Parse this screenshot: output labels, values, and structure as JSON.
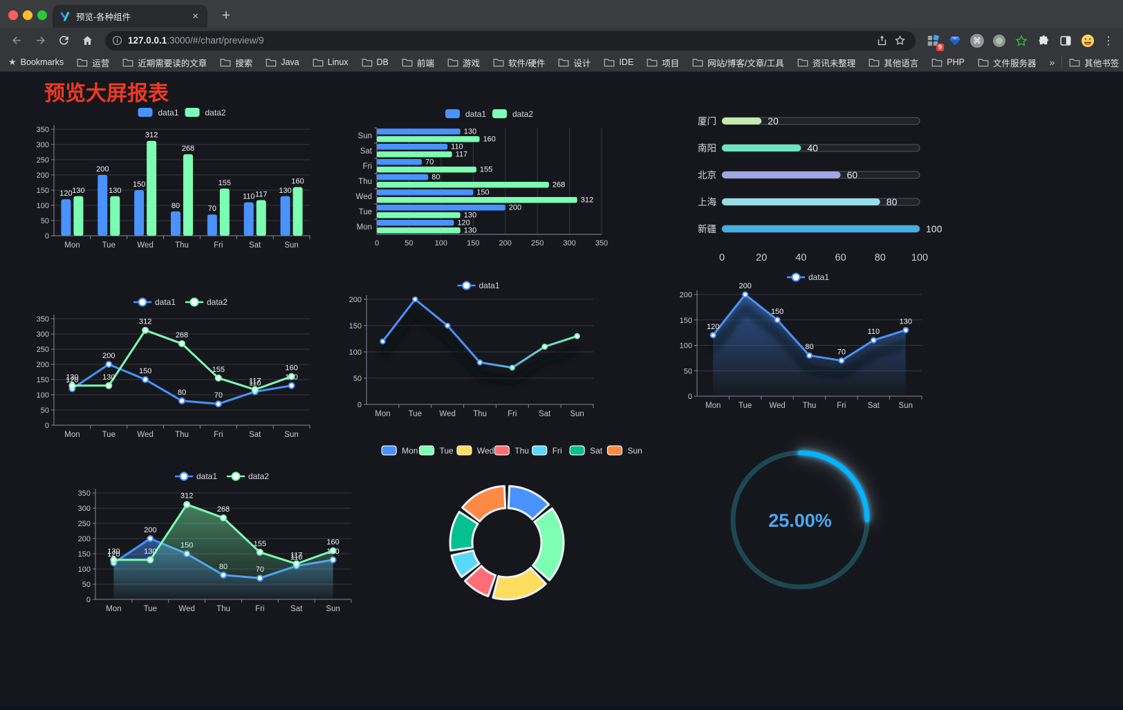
{
  "browser": {
    "tab_title": "预览-各种组件",
    "tab_close": "×",
    "new_tab": "+",
    "url_host": "127.0.0.1",
    "url_rest": ":3000/#/chart/preview/9",
    "bookmarks_root": "Bookmarks",
    "bookmark_folders": [
      "运营",
      "近期需要读的文章",
      "搜索",
      "Java",
      "Linux",
      "DB",
      "前端",
      "游戏",
      "软件/硬件",
      "设计",
      "IDE",
      "项目",
      "网站/博客/文章/工具",
      "资讯未整理",
      "其他语言",
      "PHP",
      "文件服务器"
    ],
    "overflow_chevron": "»",
    "other_bookmarks": "其他书签",
    "extension_badge": "9",
    "menu_glyph": "⋮"
  },
  "page": {
    "title": "预览大屏报表"
  },
  "colors": {
    "series_blue": "#4992ff",
    "series_green": "#7cffb2",
    "pie_palette": [
      "#4992ff",
      "#7cffb2",
      "#fddd60",
      "#ff6e76",
      "#58d9f9",
      "#05c091",
      "#ff8a45"
    ],
    "progress_palette": [
      "#c4ebad",
      "#6be6c1",
      "#a0a7e6",
      "#96dee8",
      "#3fb1e3"
    ],
    "gauge_arc": "#00b4ff",
    "gauge_track": "#1d4853",
    "gauge_text": "#4aa9f0",
    "title_red": "#ee3a24"
  },
  "chart_data": [
    {
      "id": "c1",
      "type": "bar",
      "legend": [
        "data1",
        "data2"
      ],
      "legend_position": "top",
      "categories": [
        "Mon",
        "Tue",
        "Wed",
        "Thu",
        "Fri",
        "Sat",
        "Sun"
      ],
      "series": [
        {
          "name": "data1",
          "values": [
            120,
            200,
            150,
            80,
            70,
            110,
            130
          ]
        },
        {
          "name": "data2",
          "values": [
            130,
            130,
            312,
            268,
            155,
            117,
            160
          ]
        }
      ],
      "ylim": [
        0,
        350
      ],
      "ystep": 50,
      "grid": true,
      "value_labels": true
    },
    {
      "id": "c2",
      "type": "bar",
      "orientation": "horizontal",
      "legend": [
        "data1",
        "data2"
      ],
      "categories_top_to_bottom": [
        "Sun",
        "Sat",
        "Fri",
        "Thu",
        "Wed",
        "Tue",
        "Mon"
      ],
      "series": [
        {
          "name": "data1",
          "values_top_to_bottom": [
            130,
            110,
            70,
            80,
            150,
            200,
            120
          ]
        },
        {
          "name": "data2",
          "values_top_to_bottom": [
            160,
            117,
            155,
            268,
            312,
            130,
            130
          ]
        }
      ],
      "xlim": [
        0,
        350
      ],
      "xstep": 50,
      "grid": true,
      "value_labels": true
    },
    {
      "id": "c3",
      "type": "bar",
      "subtype": "progress",
      "categories": [
        "厦门",
        "南阳",
        "北京",
        "上海",
        "新疆"
      ],
      "values": [
        20,
        40,
        60,
        80,
        100
      ],
      "xticks": [
        0,
        20,
        40,
        60,
        80,
        100
      ],
      "xlim": [
        0,
        100
      ],
      "value_labels": true
    },
    {
      "id": "c4",
      "type": "line",
      "legend": [
        "data1",
        "data2"
      ],
      "categories": [
        "Mon",
        "Tue",
        "Wed",
        "Thu",
        "Fri",
        "Sat",
        "Sun"
      ],
      "series": [
        {
          "name": "data1",
          "values": [
            120,
            200,
            150,
            80,
            70,
            110,
            130
          ]
        },
        {
          "name": "data2",
          "values": [
            130,
            130,
            312,
            268,
            155,
            117,
            160
          ]
        }
      ],
      "ylim": [
        0,
        350
      ],
      "ystep": 50,
      "value_labels": true
    },
    {
      "id": "c5",
      "type": "line",
      "legend": [
        "data1"
      ],
      "gradient_stroke": true,
      "shadow": true,
      "categories": [
        "Mon",
        "Tue",
        "Wed",
        "Thu",
        "Fri",
        "Sat",
        "Sun"
      ],
      "series": [
        {
          "name": "data1",
          "values": [
            120,
            200,
            150,
            80,
            70,
            110,
            130
          ]
        }
      ],
      "ylim": [
        0,
        200
      ],
      "ystep": 50,
      "value_labels": false
    },
    {
      "id": "c6",
      "type": "area",
      "legend": [
        "data1"
      ],
      "shadow": true,
      "categories": [
        "Mon",
        "Tue",
        "Wed",
        "Thu",
        "Fri",
        "Sat",
        "Sun"
      ],
      "series": [
        {
          "name": "data1",
          "values": [
            120,
            200,
            150,
            80,
            70,
            110,
            130
          ]
        }
      ],
      "ylim": [
        0,
        200
      ],
      "ystep": 50,
      "value_labels": true
    },
    {
      "id": "c7",
      "type": "area",
      "legend": [
        "data1",
        "data2"
      ],
      "categories": [
        "Mon",
        "Tue",
        "Wed",
        "Thu",
        "Fri",
        "Sat",
        "Sun"
      ],
      "series": [
        {
          "name": "data1",
          "values": [
            120,
            200,
            150,
            80,
            70,
            110,
            130
          ]
        },
        {
          "name": "data2",
          "values": [
            130,
            130,
            312,
            268,
            155,
            117,
            160
          ]
        }
      ],
      "ylim": [
        0,
        350
      ],
      "ystep": 50,
      "value_labels": true
    },
    {
      "id": "c8",
      "type": "pie",
      "legend_position": "top",
      "labels": [
        "Mon",
        "Tue",
        "Wed",
        "Thu",
        "Fri",
        "Sat",
        "Sun"
      ],
      "values": [
        120,
        200,
        150,
        80,
        70,
        110,
        130
      ]
    },
    {
      "id": "c9",
      "type": "gauge",
      "value": 25,
      "text": "25.00%"
    }
  ]
}
